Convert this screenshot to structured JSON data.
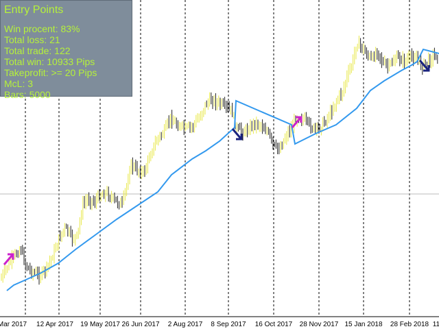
{
  "panel": {
    "title": "Entry Points",
    "stats": [
      "Win procent: 83%",
      "Total loss: 21",
      "Total trade: 122",
      "Total win: 10933 Pips",
      "Takeprofit: >= 20 Pips",
      "McL: 3",
      "Bars: 5000"
    ]
  },
  "colors": {
    "background": "#ffffff",
    "panel": "#7f8d9b",
    "panel_text": "#b6f23a",
    "bar_up": "#e8e84a",
    "bar_down": "#222222",
    "moving_average": "#3399ee",
    "buy_arrow": "#cc22cc",
    "sell_arrow": "#1a237e",
    "grid": "#000000"
  },
  "chart_data": {
    "type": "candlestick",
    "grid": "vertical dashed",
    "x_labels": [
      "Mar 2017",
      "12 Apr 2017",
      "19 May 2017",
      "26 Jun 2017",
      "2 Aug 2017",
      "8 Sep 2017",
      "16 Oct 2017",
      "28 Nov 2017",
      "15 Jan 2018",
      "28 Feb 2018",
      "11"
    ],
    "signals": [
      {
        "type": "buy",
        "icon": "buy-arrow-icon"
      },
      {
        "type": "sell",
        "icon": "sell-arrow-icon"
      },
      {
        "type": "buy",
        "icon": "buy-arrow-icon"
      },
      {
        "type": "sell",
        "icon": "sell-arrow-icon"
      }
    ]
  }
}
